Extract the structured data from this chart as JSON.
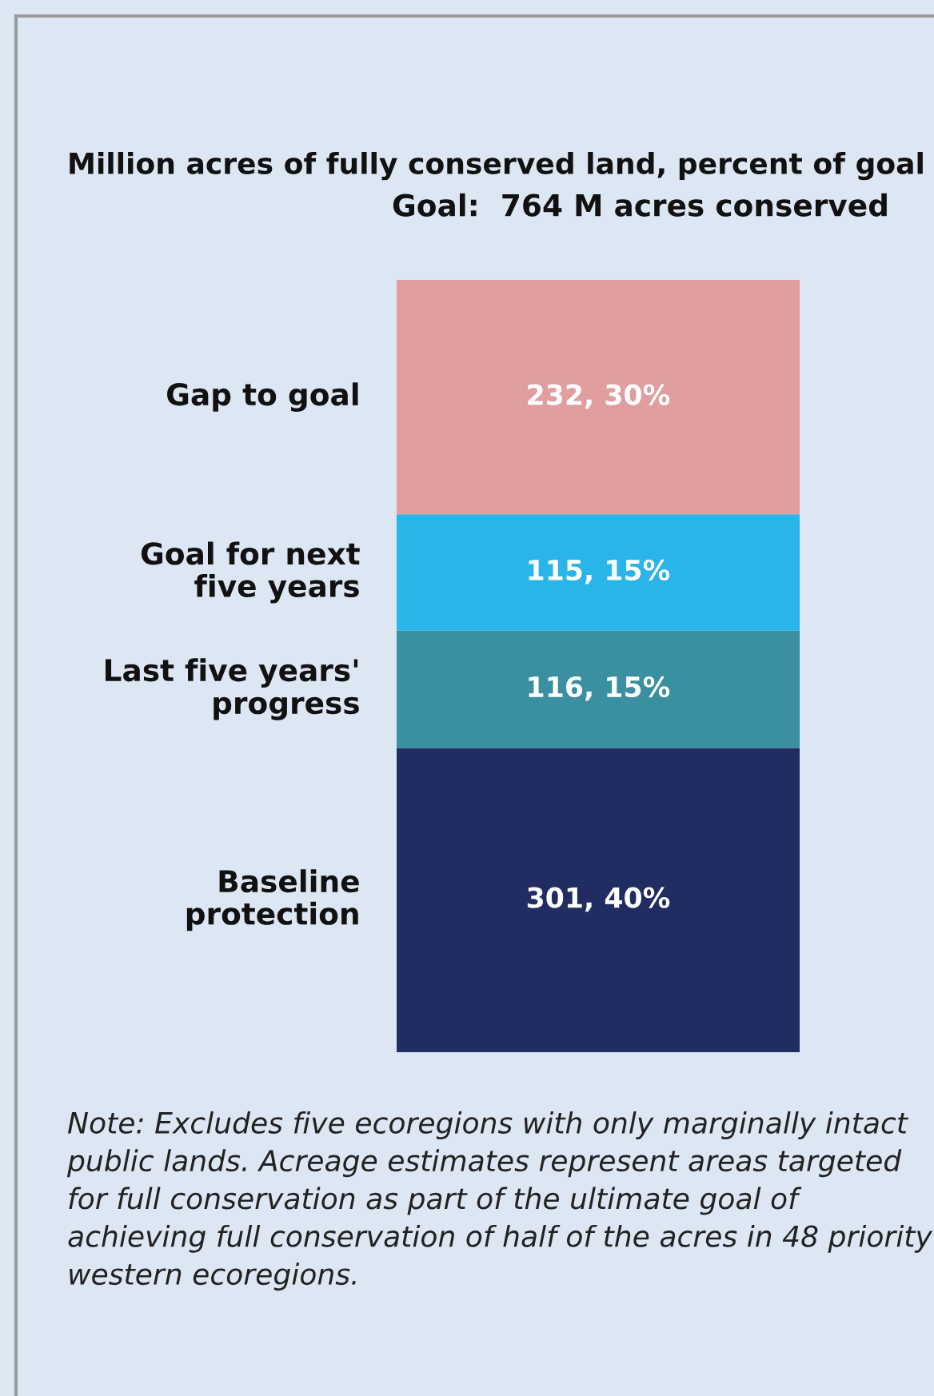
{
  "chart_data": {
    "type": "bar",
    "stacked": true,
    "title": "Million acres of fully conserved land, percent of goal",
    "subtitle": "Goal:  764 M acres conserved",
    "categories": [
      null
    ],
    "series": [
      {
        "name": "Baseline\nprotection",
        "color": "#212c62",
        "values": [
          301
        ],
        "value_labels": [
          "301, 40%"
        ]
      },
      {
        "name": "Last five years'\nprogress",
        "color": "#3a8fa0",
        "values": [
          116
        ],
        "value_labels": [
          "116, 15%"
        ]
      },
      {
        "name": "Goal for next\nfive years",
        "color": "#29b5e8",
        "values": [
          115
        ],
        "value_labels": [
          "115, 15%"
        ]
      },
      {
        "name": "Gap to goal",
        "color": "#e09e9e",
        "values": [
          232
        ],
        "value_labels": [
          "232, 30%"
        ]
      }
    ],
    "legend": false,
    "grid": false,
    "annotations": [
      "Note: Excludes five ecoregions with only marginally intact public lands. Acreage estimates represent areas targeted for full conservation as part of the ultimate goal of achieving full conservation of half of the acres in 48 priority western ecoregions."
    ]
  }
}
